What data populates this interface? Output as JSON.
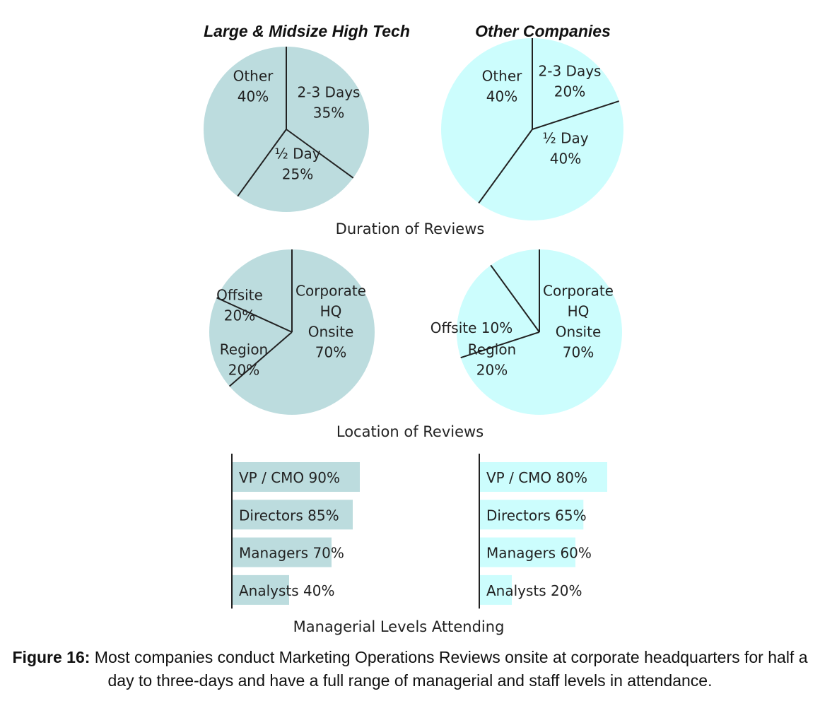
{
  "colors": {
    "high_tech": "#bcdcde",
    "other": "#ccfdfd",
    "line": "#222222"
  },
  "column_titles": [
    "Large & Midsize High Tech",
    "Other Companies"
  ],
  "chart_data": [
    {
      "type": "pie",
      "name": "duration",
      "title": "Duration of Reviews",
      "groups": [
        {
          "group": "Large & Midsize High Tech",
          "slices": [
            {
              "lines": [
                "2-3 Days",
                "35%"
              ],
              "value": 35
            },
            {
              "lines": [
                "½ Day",
                "25%"
              ],
              "value": 25
            },
            {
              "lines": [
                "Other",
                "40%"
              ],
              "value": 40
            }
          ]
        },
        {
          "group": "Other Companies",
          "slices": [
            {
              "lines": [
                "2-3 Days",
                "20%"
              ],
              "value": 20
            },
            {
              "lines": [
                "½ Day",
                "40%"
              ],
              "value": 40
            },
            {
              "lines": [
                "Other",
                "40%"
              ],
              "value": 40
            }
          ]
        }
      ]
    },
    {
      "type": "pie",
      "name": "location",
      "title": "Location of Reviews",
      "groups": [
        {
          "group": "Large & Midsize High Tech",
          "slices": [
            {
              "lines": [
                "Corporate",
                "HQ",
                "Onsite",
                "70%"
              ],
              "value": 70
            },
            {
              "lines": [
                "Region",
                "20%"
              ],
              "value": 20
            },
            {
              "lines": [
                "Offsite",
                "20%"
              ],
              "value": 20
            }
          ]
        },
        {
          "group": "Other Companies",
          "slices": [
            {
              "lines": [
                "Corporate",
                "HQ",
                "Onsite",
                "70%"
              ],
              "value": 70
            },
            {
              "lines": [
                "Region",
                "20%"
              ],
              "value": 20
            },
            {
              "lines": [
                "Offsite 10%"
              ],
              "value": 10
            }
          ]
        }
      ]
    },
    {
      "type": "bar",
      "name": "levels",
      "title": "Managerial Levels Attending",
      "xlim": [
        0,
        100
      ],
      "groups": [
        {
          "group": "Large & Midsize High Tech",
          "bars": [
            {
              "label": "VP / CMO 90%",
              "value": 90
            },
            {
              "label": "Directors 85%",
              "value": 85
            },
            {
              "label": "Managers 70%",
              "value": 70
            },
            {
              "label": "Analysts 40%",
              "value": 40
            }
          ]
        },
        {
          "group": "Other Companies",
          "bars": [
            {
              "label": "VP / CMO 80%",
              "value": 80
            },
            {
              "label": "Directors 65%",
              "value": 65
            },
            {
              "label": "Managers 60%",
              "value": 60
            },
            {
              "label": "Analysts 20%",
              "value": 20
            }
          ]
        }
      ]
    }
  ],
  "caption": {
    "label": "Figure 16:",
    "text": " Most companies conduct Marketing Operations Reviews onsite at corporate headquarters for half a day to three-days and have a full range of managerial and staff levels in attendance."
  }
}
